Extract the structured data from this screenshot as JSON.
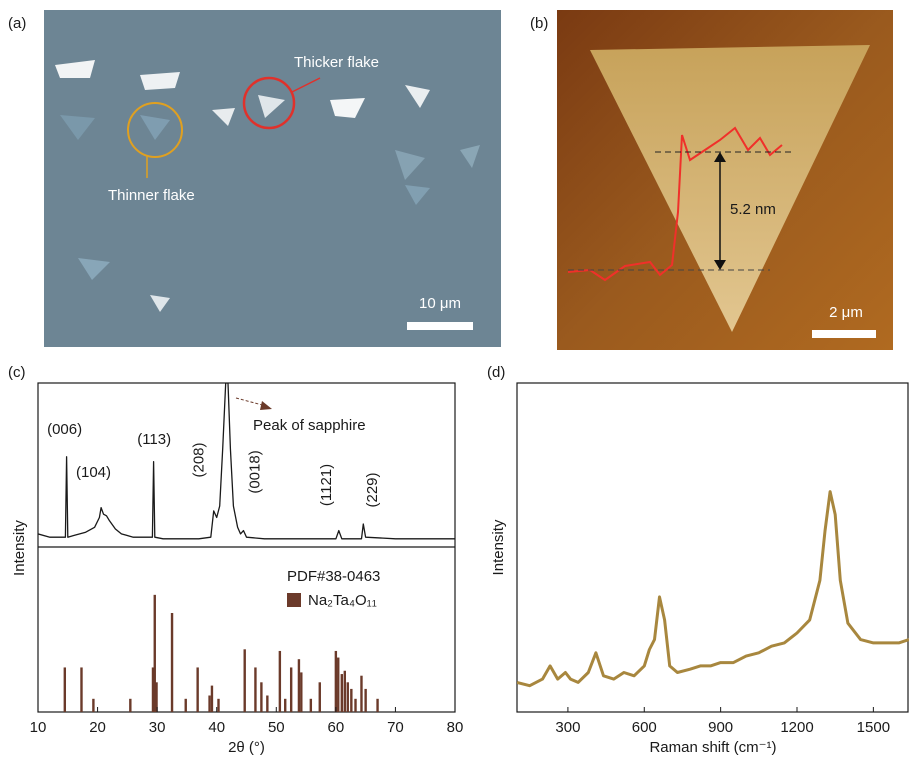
{
  "images": [
    {
      "label": "(a)",
      "annotations": [
        "Thicker flake",
        "Thinner flake"
      ],
      "scale_bar": "10 μm"
    },
    {
      "label": "(b)",
      "annotations": [
        "5.2 nm"
      ],
      "scale_bar": "2 μm"
    }
  ],
  "chart_data": [
    {
      "type": "line",
      "label": "(c)",
      "ylabel": "Intensity",
      "color": "#1a1a1a",
      "xlim": [
        10,
        80
      ],
      "ylim": [
        0,
        100
      ],
      "x": [
        10,
        12,
        14,
        14.6,
        14.8,
        15.0,
        16,
        18,
        19.5,
        20.3,
        20.6,
        21,
        21.5,
        22,
        23,
        24,
        26,
        28,
        29.2,
        29.4,
        29.6,
        31,
        34,
        37,
        39,
        39.5,
        40,
        40.5,
        41,
        41.5,
        41.9,
        42.3,
        42.8,
        43.5,
        44,
        44.5,
        45,
        48,
        52,
        56,
        60,
        60.5,
        61,
        63,
        64.3,
        64.6,
        65,
        70,
        75,
        80
      ],
      "values": [
        8,
        6,
        6,
        6,
        55,
        6,
        7,
        9,
        12,
        18,
        24,
        20,
        19,
        16,
        11,
        8,
        6,
        6,
        6,
        52,
        6,
        5,
        5,
        5,
        6,
        22,
        18,
        25,
        60,
        100,
        100,
        60,
        25,
        12,
        8,
        10,
        6,
        5,
        5,
        5,
        5,
        10,
        5,
        5,
        5,
        14,
        6,
        5,
        5,
        5
      ],
      "peak_labels": [
        {
          "label": "(006)",
          "x": 14.8
        },
        {
          "label": "(104)",
          "x": 21
        },
        {
          "label": "(113)",
          "x": 29.5
        },
        {
          "label": "(208)",
          "x": 39.5
        },
        {
          "label": "(0018)",
          "x": 44.5
        },
        {
          "label": "(1121)",
          "x": 60.5
        },
        {
          "label": "(229)",
          "x": 64.6
        }
      ],
      "annotation": "Peak of sapphire"
    },
    {
      "type": "bar",
      "legend_title": "PDF#38-0463",
      "xlabel": "2θ (°)",
      "xlim": [
        10,
        80
      ],
      "ylim": [
        0,
        100
      ],
      "xticks": [
        10,
        20,
        30,
        40,
        50,
        60,
        70,
        80
      ],
      "series": [
        {
          "name": "Na₂Ta₄O₁₁",
          "color": "#6b3a2a",
          "x": [
            14.5,
            17.3,
            19.3,
            25.5,
            29.3,
            29.6,
            29.9,
            32.5,
            34.8,
            36.8,
            38.8,
            39.2,
            40.3,
            44.7,
            46.5,
            47.5,
            48.5,
            50.6,
            51.5,
            52.5,
            53.8,
            54.2,
            55.8,
            57.3,
            60,
            60.4,
            61,
            61.5,
            62,
            62.6,
            63.3,
            64.3,
            65,
            67
          ],
          "values": [
            27,
            27,
            8,
            8,
            27,
            71,
            18,
            60,
            8,
            27,
            10,
            16,
            8,
            38,
            27,
            18,
            10,
            37,
            8,
            27,
            32,
            24,
            8,
            18,
            37,
            33,
            23,
            25,
            18,
            14,
            8,
            22,
            14,
            8
          ]
        }
      ]
    },
    {
      "type": "line",
      "label": "(d)",
      "ylabel": "Intensity",
      "xlabel": "Raman shift (cm⁻¹)",
      "color": "#a8873e",
      "xlim": [
        100,
        1640
      ],
      "ylim": [
        0,
        100
      ],
      "xticks": [
        300,
        600,
        900,
        1200,
        1500
      ],
      "x": [
        100,
        150,
        200,
        230,
        260,
        290,
        310,
        340,
        380,
        410,
        440,
        480,
        520,
        560,
        600,
        620,
        640,
        660,
        680,
        700,
        730,
        780,
        820,
        860,
        900,
        950,
        1000,
        1050,
        1100,
        1150,
        1200,
        1250,
        1290,
        1310,
        1330,
        1350,
        1370,
        1400,
        1450,
        1500,
        1550,
        1600,
        1640
      ],
      "values": [
        9,
        8,
        10,
        14,
        10,
        12,
        10,
        9,
        12,
        18,
        11,
        10,
        12,
        11,
        14,
        19,
        22,
        35,
        28,
        14,
        12,
        13,
        14,
        14,
        15,
        15,
        17,
        18,
        20,
        21,
        24,
        28,
        40,
        55,
        67,
        60,
        40,
        27,
        22,
        21,
        21,
        21,
        22
      ]
    }
  ]
}
